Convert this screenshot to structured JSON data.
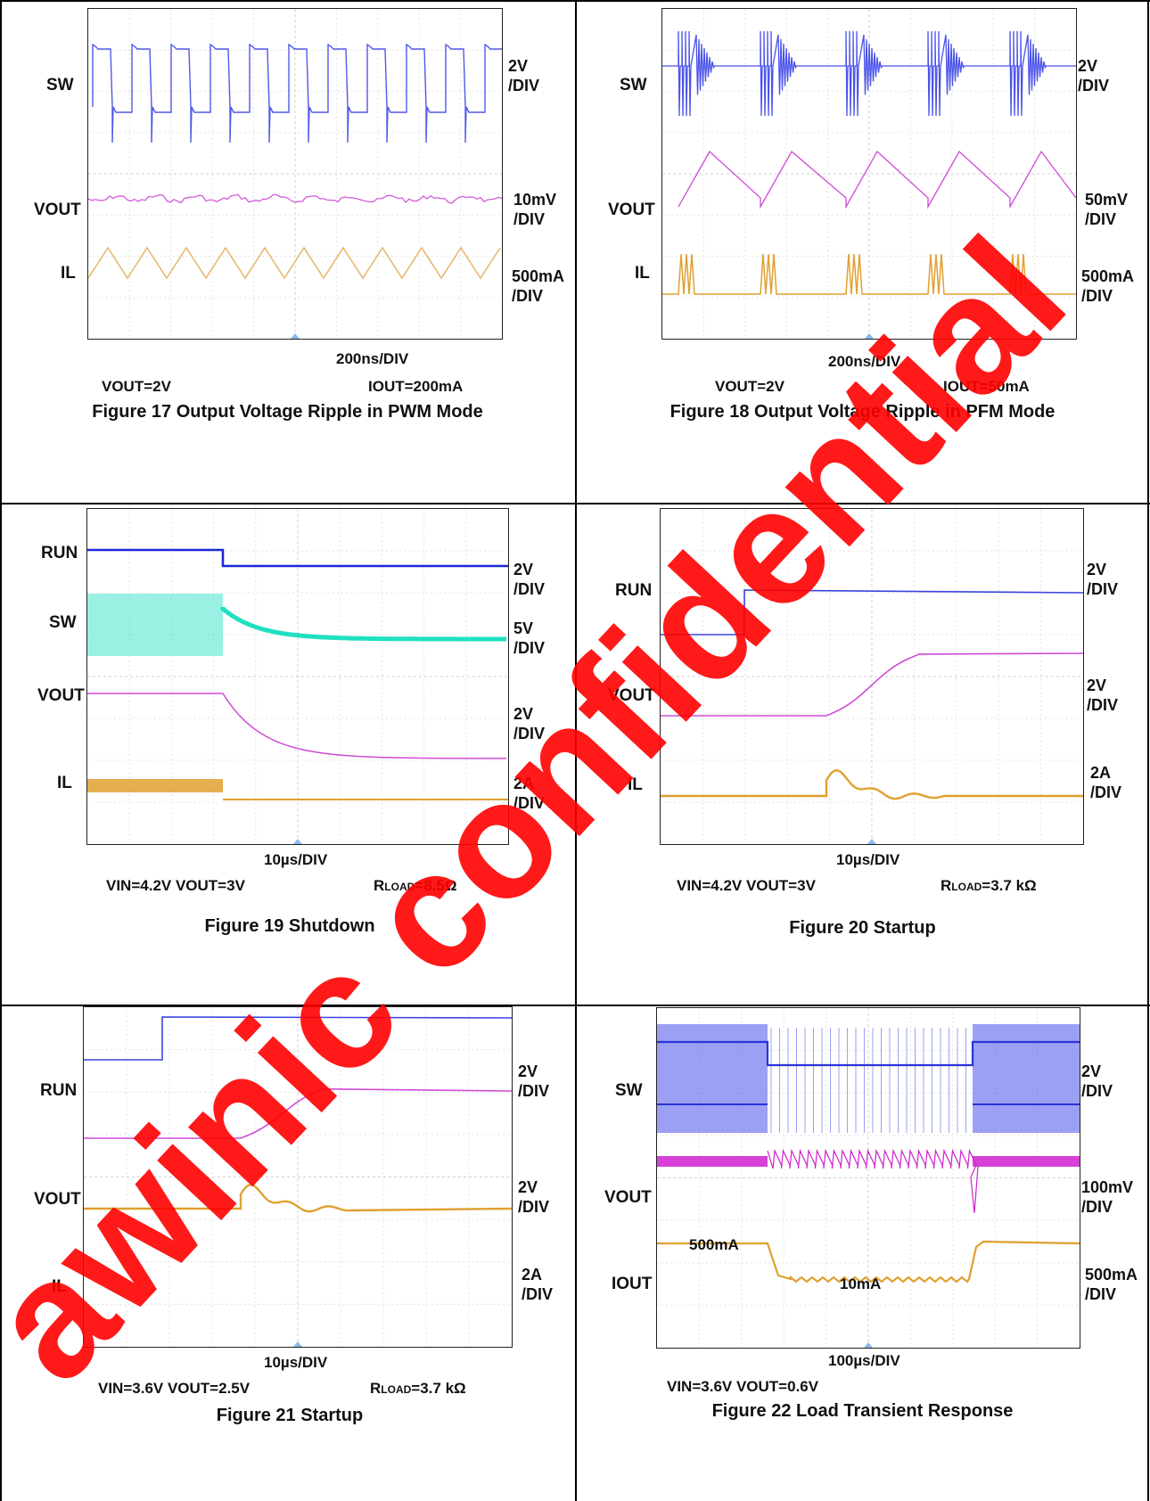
{
  "figures": [
    {
      "caption": "Figure 17 Output Voltage Ripple in PWM Mode",
      "time_div": "200ns/DIV",
      "cond_left": "VOUT=2V",
      "cond_right": "IOUT=200mA",
      "channels": [
        {
          "name": "SW",
          "scale": "2V\n/DIV",
          "color": "#5058e8"
        },
        {
          "name": "VOUT",
          "scale": "10mV\n/DIV",
          "color": "#d35ad8"
        },
        {
          "name": "IL",
          "scale": "500mA\n/DIV",
          "color": "#e8b870"
        }
      ]
    },
    {
      "caption": "Figure 18 Output Voltage Ripple in PFM Mode",
      "time_div": "200ns/DIV",
      "cond_left": "VOUT=2V",
      "cond_right": "IOUT=50mA",
      "channels": [
        {
          "name": "SW",
          "scale": "2V\n/DIV",
          "color": "#4a52ea"
        },
        {
          "name": "VOUT",
          "scale": "50mV\n/DIV",
          "color": "#d04ad6"
        },
        {
          "name": "IL",
          "scale": "500mA\n/DIV",
          "color": "#e0a030"
        }
      ]
    },
    {
      "caption": "Figure 19 Shutdown",
      "time_div": "10µs/DIV",
      "cond_left": "VIN=4.2V VOUT=3V",
      "cond_right_prefix": "R",
      "cond_right_sub": "LOAD",
      "cond_right_value": "=8.5Ω",
      "channels": [
        {
          "name": "RUN",
          "scale": "2V\n/DIV",
          "color": "#1c28d8"
        },
        {
          "name": "SW",
          "scale": "5V\n/DIV",
          "color": "#20e0c0"
        },
        {
          "name": "VOUT",
          "scale": "2V\n/DIV",
          "color": "#d04ad6"
        },
        {
          "name": "IL",
          "scale": "2A\n/DIV",
          "color": "#e0a030"
        }
      ]
    },
    {
      "caption": "Figure 20 Startup",
      "time_div": "10µs/DIV",
      "cond_left": "VIN=4.2V VOUT=3V",
      "cond_right_prefix": "R",
      "cond_right_sub": "LOAD",
      "cond_right_value": "=3.7 kΩ",
      "channels": [
        {
          "name": "RUN",
          "scale": "2V\n/DIV",
          "color": "#3a44e0"
        },
        {
          "name": "VOUT",
          "scale": "2V\n/DIV",
          "color": "#d04ad6"
        },
        {
          "name": "IL",
          "scale": "2A\n/DIV",
          "color": "#e0a030"
        }
      ]
    },
    {
      "caption": "Figure 21 Startup",
      "time_div": "10µs/DIV",
      "cond_left": "VIN=3.6V VOUT=2.5V",
      "cond_right_prefix": "R",
      "cond_right_sub": "LOAD",
      "cond_right_value": "=3.7 kΩ",
      "channels": [
        {
          "name": "RUN",
          "scale": "2V\n/DIV",
          "color": "#3a44e0"
        },
        {
          "name": "VOUT",
          "scale": "2V\n/DIV",
          "color": "#d04ad6"
        },
        {
          "name": "IL",
          "scale": "2A\n/DIV",
          "color": "#e0a030"
        }
      ]
    },
    {
      "caption": "Figure 22 Load Transient Response",
      "time_div": "100µs/DIV",
      "cond_left": "VIN=3.6V VOUT=0.6V",
      "annotations": [
        "500mA",
        "10mA"
      ],
      "channels": [
        {
          "name": "SW",
          "scale": "2V\n/DIV",
          "color": "#4a52ea"
        },
        {
          "name": "VOUT",
          "scale": "100mV\n/DIV",
          "color": "#d020d0"
        },
        {
          "name": "IOUT",
          "scale": "500mA\n/DIV",
          "color": "#e0a030"
        }
      ]
    }
  ],
  "watermark": {
    "text": "awinic confidential",
    "color": "#ff0000"
  }
}
